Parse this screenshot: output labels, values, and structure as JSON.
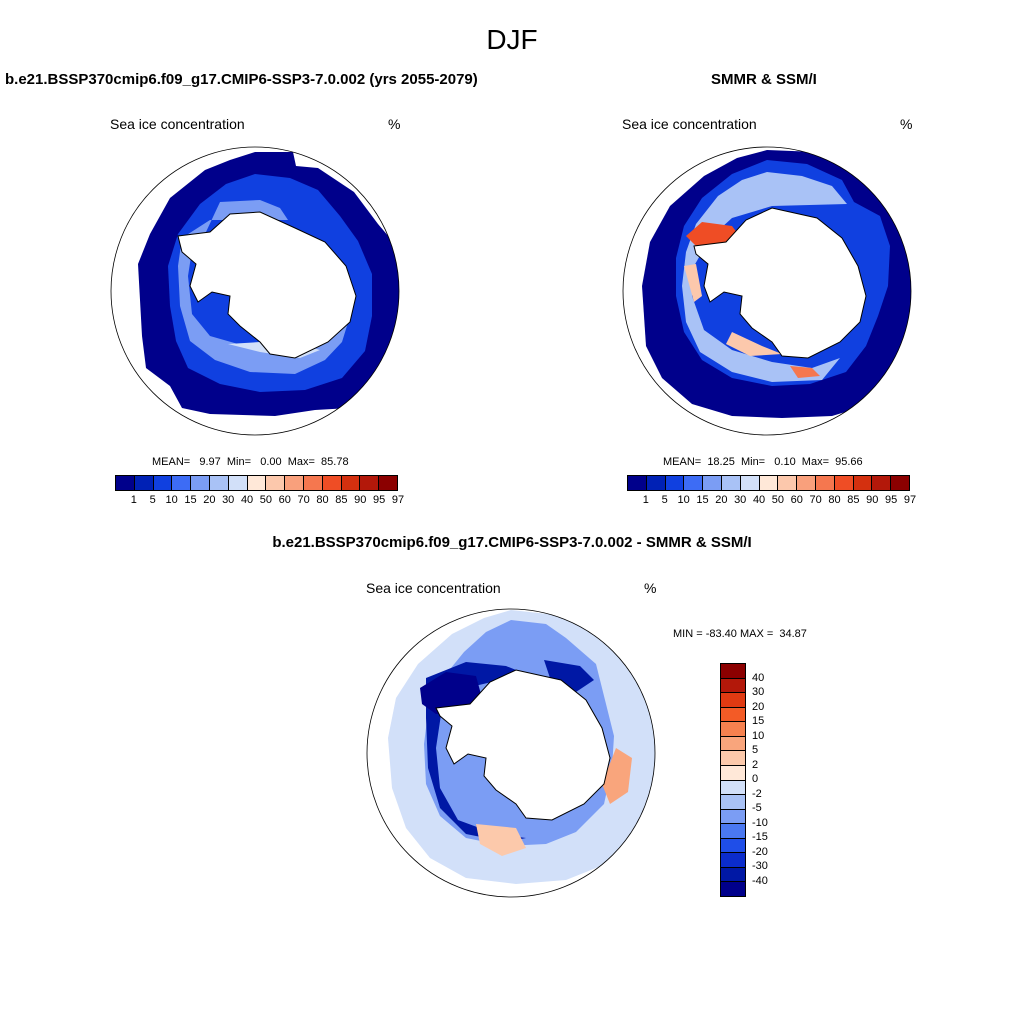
{
  "figure": {
    "title": "DJF"
  },
  "panels": [
    {
      "title": "b.e21.BSSP370cmip6.f09_g17.CMIP6-SSP3-7.0.002 (yrs 2055-2079)",
      "left_label": "Sea ice concentration",
      "right_label": "%",
      "stats": "MEAN=   9.97  Min=   0.00  Max=  85.78"
    },
    {
      "title": "SMMR & SSM/I",
      "left_label": "Sea ice concentration",
      "right_label": "%",
      "stats": "MEAN=  18.25  Min=   0.10  Max=  95.66"
    },
    {
      "title": "b.e21.BSSP370cmip6.f09_g17.CMIP6-SSP3-7.0.002 - SMMR & SSM/I",
      "left_label": "Sea ice concentration",
      "right_label": "%",
      "stats": "MIN = -83.40 MAX =  34.87"
    }
  ],
  "concentration_colorbar": {
    "colors": [
      "#00008b",
      "#0021b5",
      "#1040e0",
      "#3d6cf5",
      "#7b9df4",
      "#a9c2f6",
      "#d2e0f9",
      "#ffe8d8",
      "#fcc8ac",
      "#f9a07c",
      "#f5774f",
      "#ef4d25",
      "#d4300f",
      "#b3180a",
      "#8b0000"
    ],
    "ticks": [
      "1",
      "5",
      "10",
      "15",
      "20",
      "30",
      "40",
      "50",
      "60",
      "70",
      "80",
      "85",
      "90",
      "95",
      "97"
    ]
  },
  "difference_colorbar": {
    "colors": [
      "#8b0000",
      "#b3180a",
      "#e03a12",
      "#f35b26",
      "#f6814f",
      "#f9a57c",
      "#fcc9ab",
      "#ffe8d8",
      "#d2e0f9",
      "#a9c2f6",
      "#7b9df4",
      "#4a78f1",
      "#1f4ee8",
      "#0b2ccc",
      "#0018a5",
      "#00008b"
    ],
    "ticks": [
      "40",
      "30",
      "20",
      "15",
      "10",
      "5",
      "2",
      "0",
      "-2",
      "-5",
      "-10",
      "-15",
      "-20",
      "-30",
      "-40"
    ]
  }
}
